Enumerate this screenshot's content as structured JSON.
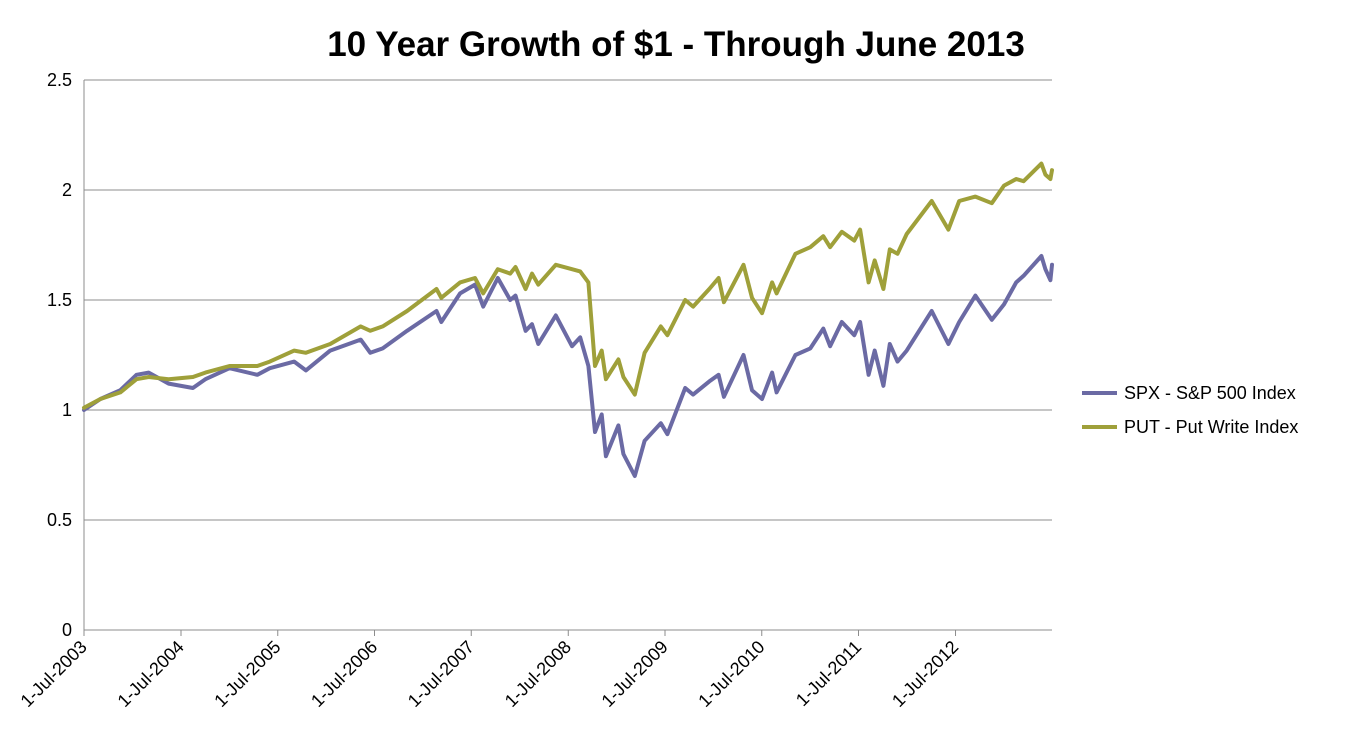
{
  "chart_data": {
    "type": "line",
    "title": "10 Year Growth of $1 - Through June 2013",
    "xlabel": "",
    "ylabel": "",
    "ylim": [
      0,
      2.5
    ],
    "yticks": [
      "0",
      "0.5",
      "1",
      "1.5",
      "2",
      "2.5"
    ],
    "xlim": [
      "2003-07-01",
      "2013-06-30"
    ],
    "xticks": [
      {
        "label": "1-Jul-2003",
        "date": "2003-07-01"
      },
      {
        "label": "1-Jul-2004",
        "date": "2004-07-01"
      },
      {
        "label": "1-Jul-2005",
        "date": "2005-07-01"
      },
      {
        "label": "1-Jul-2006",
        "date": "2006-07-01"
      },
      {
        "label": "1-Jul-2007",
        "date": "2007-07-01"
      },
      {
        "label": "1-Jul-2008",
        "date": "2008-07-01"
      },
      {
        "label": "1-Jul-2009",
        "date": "2009-07-01"
      },
      {
        "label": "1-Jul-2010",
        "date": "2010-07-01"
      },
      {
        "label": "1-Jul-2011",
        "date": "2011-07-01"
      },
      {
        "label": "1-Jul-2012",
        "date": "2012-07-01"
      }
    ],
    "grid": true,
    "legend_position": "right",
    "series": [
      {
        "name": "SPX - S&P 500 Index",
        "color": "#6b6aa4",
        "x": [
          "2003-07-01",
          "2003-09-01",
          "2003-11-15",
          "2004-01-15",
          "2004-03-01",
          "2004-05-15",
          "2004-08-15",
          "2004-10-01",
          "2004-12-31",
          "2005-04-15",
          "2005-06-01",
          "2005-09-01",
          "2005-10-15",
          "2006-01-15",
          "2006-05-10",
          "2006-06-15",
          "2006-08-01",
          "2006-11-01",
          "2007-02-20",
          "2007-03-10",
          "2007-05-20",
          "2007-07-15",
          "2007-08-15",
          "2007-10-09",
          "2007-11-25",
          "2007-12-15",
          "2008-01-22",
          "2008-02-15",
          "2008-03-10",
          "2008-05-15",
          "2008-07-15",
          "2008-08-15",
          "2008-09-15",
          "2008-10-10",
          "2008-11-04",
          "2008-11-20",
          "2009-01-06",
          "2009-01-25",
          "2009-03-09",
          "2009-04-15",
          "2009-06-15",
          "2009-07-10",
          "2009-09-15",
          "2009-10-15",
          "2009-12-15",
          "2010-01-19",
          "2010-02-08",
          "2010-04-23",
          "2010-05-25",
          "2010-07-02",
          "2010-08-09",
          "2010-08-26",
          "2010-11-05",
          "2010-12-31",
          "2011-02-18",
          "2011-03-16",
          "2011-04-29",
          "2011-06-15",
          "2011-07-07",
          "2011-08-08",
          "2011-08-31",
          "2011-10-03",
          "2011-10-27",
          "2011-11-25",
          "2011-12-30",
          "2012-04-02",
          "2012-06-04",
          "2012-07-15",
          "2012-09-14",
          "2012-11-15",
          "2012-12-31",
          "2013-02-15",
          "2013-03-15",
          "2013-05-21",
          "2013-06-05",
          "2013-06-24",
          "2013-06-30"
        ],
        "values": [
          1.0,
          1.05,
          1.09,
          1.16,
          1.17,
          1.12,
          1.1,
          1.14,
          1.19,
          1.16,
          1.19,
          1.22,
          1.18,
          1.27,
          1.32,
          1.26,
          1.28,
          1.36,
          1.45,
          1.4,
          1.53,
          1.57,
          1.47,
          1.6,
          1.5,
          1.52,
          1.36,
          1.39,
          1.3,
          1.43,
          1.29,
          1.33,
          1.2,
          0.9,
          0.98,
          0.79,
          0.93,
          0.8,
          0.7,
          0.86,
          0.94,
          0.89,
          1.1,
          1.07,
          1.13,
          1.16,
          1.06,
          1.25,
          1.09,
          1.05,
          1.17,
          1.08,
          1.25,
          1.28,
          1.37,
          1.29,
          1.4,
          1.34,
          1.4,
          1.16,
          1.27,
          1.11,
          1.3,
          1.22,
          1.27,
          1.45,
          1.3,
          1.4,
          1.52,
          1.41,
          1.48,
          1.58,
          1.61,
          1.7,
          1.64,
          1.59,
          1.66
        ]
      },
      {
        "name": "PUT - Put Write Index",
        "color": "#9fa03a",
        "x": [
          "2003-07-01",
          "2003-09-01",
          "2003-11-15",
          "2004-01-15",
          "2004-03-01",
          "2004-05-15",
          "2004-08-15",
          "2004-10-01",
          "2004-12-31",
          "2005-04-15",
          "2005-06-01",
          "2005-09-01",
          "2005-10-15",
          "2006-01-15",
          "2006-05-10",
          "2006-06-15",
          "2006-08-01",
          "2006-11-01",
          "2007-02-20",
          "2007-03-10",
          "2007-05-20",
          "2007-07-15",
          "2007-08-15",
          "2007-10-09",
          "2007-11-25",
          "2007-12-15",
          "2008-01-22",
          "2008-02-15",
          "2008-03-10",
          "2008-05-15",
          "2008-07-15",
          "2008-08-15",
          "2008-09-15",
          "2008-10-10",
          "2008-11-04",
          "2008-11-20",
          "2009-01-06",
          "2009-01-25",
          "2009-03-09",
          "2009-04-15",
          "2009-06-15",
          "2009-07-10",
          "2009-09-15",
          "2009-10-15",
          "2009-12-15",
          "2010-01-19",
          "2010-02-08",
          "2010-04-23",
          "2010-05-25",
          "2010-07-02",
          "2010-08-09",
          "2010-08-26",
          "2010-11-05",
          "2010-12-31",
          "2011-02-18",
          "2011-03-16",
          "2011-04-29",
          "2011-06-15",
          "2011-07-07",
          "2011-08-08",
          "2011-08-31",
          "2011-10-03",
          "2011-10-27",
          "2011-11-25",
          "2011-12-30",
          "2012-04-02",
          "2012-06-04",
          "2012-07-15",
          "2012-09-14",
          "2012-11-15",
          "2012-12-31",
          "2013-02-15",
          "2013-03-15",
          "2013-05-21",
          "2013-06-05",
          "2013-06-24",
          "2013-06-30"
        ],
        "values": [
          1.01,
          1.05,
          1.08,
          1.14,
          1.15,
          1.14,
          1.15,
          1.17,
          1.2,
          1.2,
          1.22,
          1.27,
          1.26,
          1.3,
          1.38,
          1.36,
          1.38,
          1.45,
          1.55,
          1.51,
          1.58,
          1.6,
          1.53,
          1.64,
          1.62,
          1.65,
          1.55,
          1.62,
          1.57,
          1.66,
          1.64,
          1.63,
          1.58,
          1.2,
          1.27,
          1.14,
          1.23,
          1.15,
          1.07,
          1.26,
          1.38,
          1.34,
          1.5,
          1.47,
          1.55,
          1.6,
          1.49,
          1.66,
          1.51,
          1.44,
          1.58,
          1.53,
          1.71,
          1.74,
          1.79,
          1.74,
          1.81,
          1.77,
          1.82,
          1.58,
          1.68,
          1.55,
          1.73,
          1.71,
          1.8,
          1.95,
          1.82,
          1.95,
          1.97,
          1.94,
          2.02,
          2.05,
          2.04,
          2.12,
          2.07,
          2.05,
          2.09
        ]
      }
    ]
  }
}
